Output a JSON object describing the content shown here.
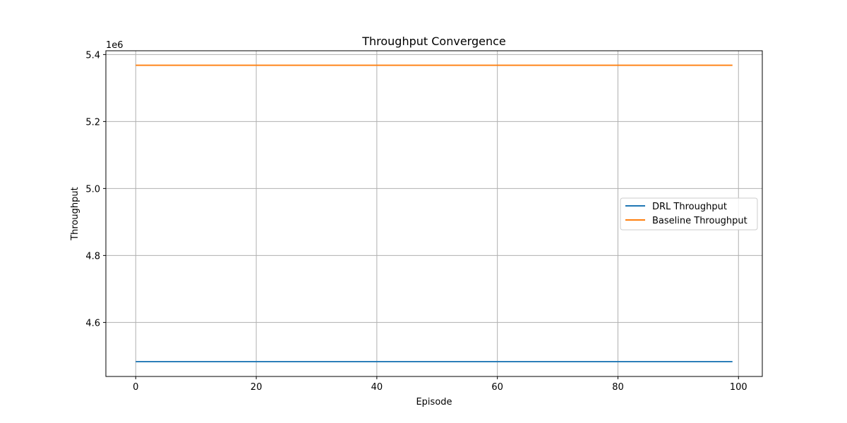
{
  "chart_data": {
    "type": "line",
    "title": "Throughput Convergence",
    "xlabel": "Episode",
    "ylabel": "Throughput",
    "y_offset_label": "1e6",
    "xlim": [
      -4.95,
      103.95
    ],
    "ylim": [
      4.4387,
      5.4113
    ],
    "x_ticks": [
      0,
      20,
      40,
      60,
      80,
      100
    ],
    "y_ticks": [
      4.6,
      4.8,
      5.0,
      5.2,
      5.4
    ],
    "y_scale_factor": 1000000,
    "grid": true,
    "legend_position": "center-right",
    "series": [
      {
        "name": "DRL Throughput",
        "color": "#1f77b4",
        "x_range": [
          0,
          99
        ],
        "constant_value": 4.483
      },
      {
        "name": "Baseline Throughput",
        "color": "#ff7f0e",
        "x_range": [
          0,
          99
        ],
        "constant_value": 5.368
      }
    ]
  }
}
